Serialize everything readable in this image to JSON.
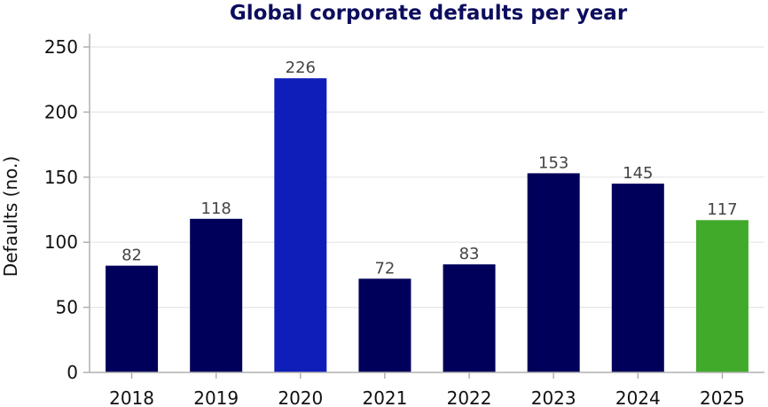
{
  "chart_data": {
    "type": "bar",
    "title": "Global corporate defaults per year",
    "xlabel": "",
    "ylabel": "Defaults (no.)",
    "categories": [
      "2018",
      "2019",
      "2020",
      "2021",
      "2022",
      "2023",
      "2024",
      "2025"
    ],
    "values": [
      82,
      118,
      226,
      72,
      83,
      153,
      145,
      117
    ],
    "ylim": [
      0,
      260
    ],
    "yticks": [
      0,
      50,
      100,
      150,
      200,
      250
    ],
    "grid": "horizontal",
    "colors": {
      "default": "#00005a",
      "highlight": "#0f1eb8",
      "latest": "#42aa2a"
    },
    "bar_color_keys": [
      "default",
      "default",
      "highlight",
      "default",
      "default",
      "default",
      "default",
      "latest"
    ]
  }
}
